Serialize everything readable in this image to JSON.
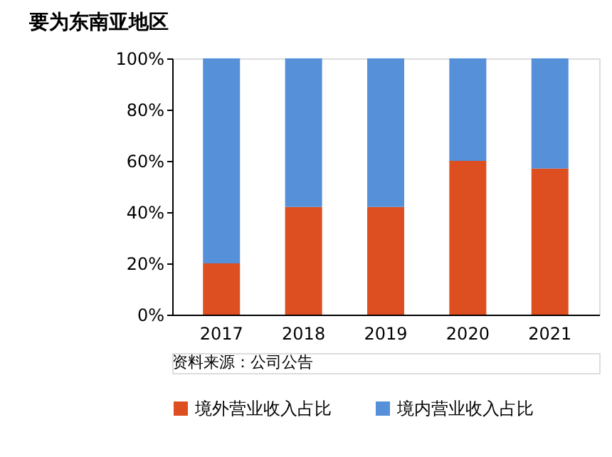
{
  "chart_data": {
    "type": "bar",
    "title": "要为东南亚地区",
    "categories": [
      "2017",
      "2018",
      "2019",
      "2020",
      "2021"
    ],
    "stacked": true,
    "series": [
      {
        "name": "境外营业收入占比",
        "color": "#dd4f20",
        "values": [
          20,
          42,
          42,
          60,
          57
        ]
      },
      {
        "name": "境内营业收入占比",
        "color": "#5590d8",
        "values": [
          80,
          58,
          58,
          40,
          43
        ]
      }
    ],
    "ylim": [
      0,
      100
    ],
    "yticks": [
      {
        "value": 0,
        "label": "0%"
      },
      {
        "value": 20,
        "label": "20%"
      },
      {
        "value": 40,
        "label": "40%"
      },
      {
        "value": 60,
        "label": "60%"
      },
      {
        "value": 80,
        "label": "80%"
      },
      {
        "value": 100,
        "label": "100%"
      }
    ],
    "grid": false,
    "legend": "bottom",
    "annotations": [
      "资料来源：公司公告"
    ]
  }
}
